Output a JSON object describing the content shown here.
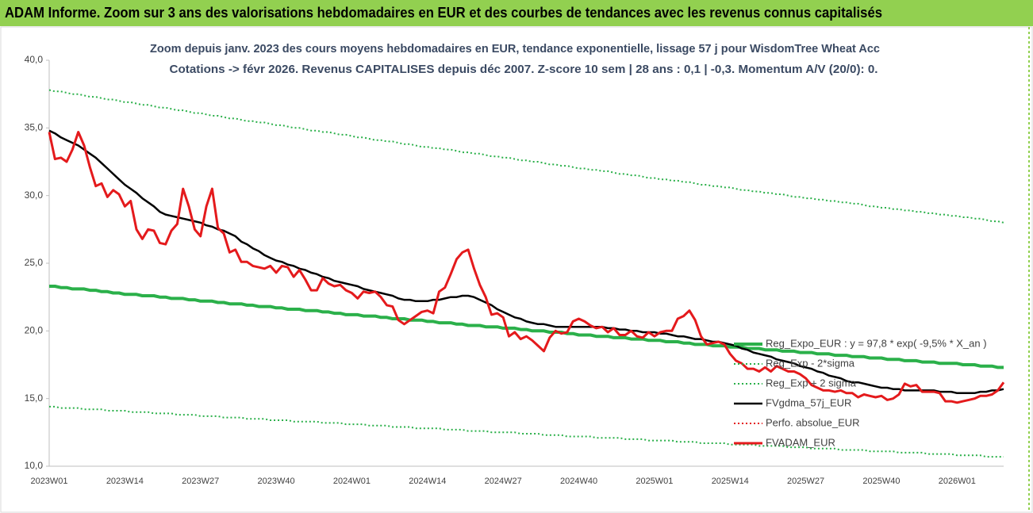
{
  "header": {
    "title": "ADAM Informe. Zoom sur 3 ans des valorisations hebdomadaires en EUR et des courbes de tendances avec les revenus connus capitalisés"
  },
  "chart_data": {
    "type": "line",
    "title": "Zoom depuis janv. 2023 des cours moyens hebdomadaires en EUR, tendance exponentielle, lissage 57 j pour WisdomTree Wheat Acc",
    "subtitle": "Cotations -> févr 2026. Revenus CAPITALISES depuis déc 2007. Z-score 10 sem | 28 ans : 0,1 | -0,3. Momentum A/V (20/0): 0.",
    "categories": [
      "2023W01",
      null,
      null,
      null,
      null,
      null,
      null,
      null,
      null,
      null,
      null,
      null,
      null,
      "2023W14",
      null,
      null,
      null,
      null,
      null,
      null,
      null,
      null,
      null,
      null,
      null,
      null,
      "2023W27",
      null,
      null,
      null,
      null,
      null,
      null,
      null,
      null,
      null,
      null,
      null,
      null,
      "2023W40",
      null,
      null,
      null,
      null,
      null,
      null,
      null,
      null,
      null,
      null,
      null,
      null,
      "2024W01",
      null,
      null,
      null,
      null,
      null,
      null,
      null,
      null,
      null,
      null,
      null,
      null,
      "2024W14",
      null,
      null,
      null,
      null,
      null,
      null,
      null,
      null,
      null,
      null,
      null,
      null,
      "2024W27",
      null,
      null,
      null,
      null,
      null,
      null,
      null,
      null,
      null,
      null,
      null,
      null,
      "2024W40",
      null,
      null,
      null,
      null,
      null,
      null,
      null,
      null,
      null,
      null,
      null,
      null,
      "2025W01",
      null,
      null,
      null,
      null,
      null,
      null,
      null,
      null,
      null,
      null,
      null,
      null,
      "2025W14",
      null,
      null,
      null,
      null,
      null,
      null,
      null,
      null,
      null,
      null,
      null,
      null,
      "2025W27",
      null,
      null,
      null,
      null,
      null,
      null,
      null,
      null,
      null,
      null,
      null,
      null,
      "2025W40",
      null,
      null,
      null,
      null,
      null,
      null,
      null,
      null,
      null,
      null,
      null,
      null,
      "2026W01",
      null,
      null,
      null,
      null,
      null,
      null,
      null,
      null
    ],
    "ylim": [
      10,
      40
    ],
    "yticks": [
      {
        "value": 10,
        "label": "10,0"
      },
      {
        "value": 15,
        "label": "15,0"
      },
      {
        "value": 20,
        "label": "20,0"
      },
      {
        "value": 25,
        "label": "25,0"
      },
      {
        "value": 30,
        "label": "30,0"
      },
      {
        "value": 35,
        "label": "35,0"
      },
      {
        "value": 40,
        "label": "40,0"
      }
    ],
    "grid": false,
    "legend": "right",
    "series": [
      {
        "name": "Reg_Expo_EUR : y = 97,8 * exp( -9,5% * X_an )",
        "color": "#2bb04a",
        "style": "solid",
        "width": 4,
        "values": [
          23.3,
          23.3,
          23.2,
          23.2,
          23.1,
          23.1,
          23.1,
          23.0,
          23.0,
          22.9,
          22.9,
          22.8,
          22.8,
          22.7,
          22.7,
          22.7,
          22.6,
          22.6,
          22.6,
          22.5,
          22.5,
          22.4,
          22.4,
          22.4,
          22.3,
          22.3,
          22.2,
          22.2,
          22.2,
          22.1,
          22.1,
          22.0,
          22.0,
          22.0,
          21.9,
          21.9,
          21.8,
          21.8,
          21.8,
          21.7,
          21.7,
          21.6,
          21.6,
          21.6,
          21.5,
          21.5,
          21.5,
          21.4,
          21.4,
          21.3,
          21.3,
          21.2,
          21.2,
          21.2,
          21.1,
          21.1,
          21.1,
          21.0,
          21.0,
          20.9,
          20.9,
          20.9,
          20.8,
          20.8,
          20.8,
          20.7,
          20.7,
          20.6,
          20.6,
          20.6,
          20.5,
          20.5,
          20.4,
          20.4,
          20.4,
          20.3,
          20.3,
          20.3,
          20.2,
          20.2,
          20.2,
          20.1,
          20.1,
          20.0,
          20.0,
          20.0,
          19.9,
          19.9,
          19.9,
          19.8,
          19.8,
          19.7,
          19.7,
          19.7,
          19.6,
          19.6,
          19.6,
          19.5,
          19.5,
          19.5,
          19.4,
          19.4,
          19.4,
          19.3,
          19.3,
          19.3,
          19.2,
          19.2,
          19.2,
          19.1,
          19.1,
          19.0,
          19.0,
          19.0,
          18.9,
          18.9,
          18.9,
          18.8,
          18.8,
          18.8,
          18.7,
          18.7,
          18.7,
          18.6,
          18.6,
          18.6,
          18.5,
          18.5,
          18.5,
          18.4,
          18.4,
          18.4,
          18.3,
          18.3,
          18.3,
          18.2,
          18.2,
          18.2,
          18.1,
          18.1,
          18.1,
          18.0,
          18.0,
          18.0,
          17.9,
          17.9,
          17.9,
          17.8,
          17.8,
          17.8,
          17.7,
          17.7,
          17.7,
          17.6,
          17.6,
          17.6,
          17.6,
          17.5,
          17.5,
          17.5,
          17.4,
          17.4,
          17.4,
          17.3,
          17.3
        ]
      },
      {
        "name": "Reg_Exp - 2*sigma",
        "color": "#2bb04a",
        "style": "dotted",
        "width": 2,
        "values": [
          14.4,
          14.4,
          14.3,
          14.3,
          14.3,
          14.3,
          14.2,
          14.2,
          14.2,
          14.2,
          14.1,
          14.1,
          14.1,
          14.1,
          14.0,
          14.0,
          14.0,
          14.0,
          13.9,
          13.9,
          13.9,
          13.9,
          13.8,
          13.8,
          13.8,
          13.8,
          13.7,
          13.7,
          13.7,
          13.7,
          13.6,
          13.6,
          13.6,
          13.6,
          13.5,
          13.5,
          13.5,
          13.5,
          13.4,
          13.4,
          13.4,
          13.4,
          13.3,
          13.3,
          13.3,
          13.3,
          13.3,
          13.2,
          13.2,
          13.2,
          13.2,
          13.1,
          13.1,
          13.1,
          13.1,
          13.0,
          13.0,
          13.0,
          13.0,
          12.9,
          12.9,
          12.9,
          12.9,
          12.8,
          12.8,
          12.8,
          12.8,
          12.8,
          12.7,
          12.7,
          12.7,
          12.7,
          12.6,
          12.6,
          12.6,
          12.6,
          12.5,
          12.5,
          12.5,
          12.5,
          12.5,
          12.4,
          12.4,
          12.4,
          12.4,
          12.3,
          12.3,
          12.3,
          12.3,
          12.2,
          12.2,
          12.2,
          12.2,
          12.2,
          12.1,
          12.1,
          12.1,
          12.1,
          12.1,
          12.0,
          12.0,
          12.0,
          12.0,
          11.9,
          11.9,
          11.9,
          11.9,
          11.9,
          11.8,
          11.8,
          11.8,
          11.8,
          11.7,
          11.7,
          11.7,
          11.7,
          11.7,
          11.6,
          11.6,
          11.6,
          11.6,
          11.6,
          11.5,
          11.5,
          11.5,
          11.5,
          11.5,
          11.4,
          11.4,
          11.4,
          11.4,
          11.3,
          11.3,
          11.3,
          11.3,
          11.3,
          11.2,
          11.2,
          11.2,
          11.2,
          11.2,
          11.1,
          11.1,
          11.1,
          11.1,
          11.1,
          11.0,
          11.0,
          11.0,
          11.0,
          11.0,
          10.9,
          10.9,
          10.9,
          10.9,
          10.9,
          10.8,
          10.8,
          10.8,
          10.8,
          10.8,
          10.7,
          10.7,
          10.7,
          10.7
        ]
      },
      {
        "name": "Reg_Exp + 2 sigma",
        "color": "#2bb04a",
        "style": "dotted",
        "width": 2,
        "values": [
          37.8,
          37.7,
          37.7,
          37.6,
          37.5,
          37.5,
          37.4,
          37.3,
          37.3,
          37.2,
          37.1,
          37.1,
          37.0,
          36.9,
          36.9,
          36.8,
          36.7,
          36.7,
          36.6,
          36.5,
          36.5,
          36.4,
          36.3,
          36.3,
          36.2,
          36.1,
          36.1,
          36.0,
          35.9,
          35.9,
          35.8,
          35.7,
          35.7,
          35.6,
          35.5,
          35.5,
          35.4,
          35.4,
          35.3,
          35.2,
          35.2,
          35.1,
          35.0,
          35.0,
          34.9,
          34.8,
          34.8,
          34.7,
          34.7,
          34.6,
          34.5,
          34.5,
          34.4,
          34.3,
          34.3,
          34.2,
          34.1,
          34.1,
          34.0,
          34.0,
          33.9,
          33.8,
          33.8,
          33.7,
          33.6,
          33.6,
          33.5,
          33.5,
          33.4,
          33.4,
          33.3,
          33.2,
          33.2,
          33.1,
          33.1,
          33.0,
          32.9,
          32.9,
          32.8,
          32.8,
          32.7,
          32.6,
          32.6,
          32.5,
          32.5,
          32.4,
          32.3,
          32.3,
          32.2,
          32.2,
          32.1,
          32.0,
          32.0,
          31.9,
          31.9,
          31.8,
          31.8,
          31.7,
          31.6,
          31.6,
          31.5,
          31.5,
          31.4,
          31.3,
          31.3,
          31.2,
          31.2,
          31.1,
          31.1,
          31.0,
          31.0,
          30.9,
          30.8,
          30.8,
          30.7,
          30.7,
          30.6,
          30.6,
          30.5,
          30.4,
          30.4,
          30.3,
          30.3,
          30.2,
          30.2,
          30.1,
          30.1,
          30.0,
          29.9,
          29.9,
          29.8,
          29.8,
          29.7,
          29.7,
          29.6,
          29.6,
          29.5,
          29.5,
          29.4,
          29.4,
          29.3,
          29.2,
          29.2,
          29.1,
          29.1,
          29.0,
          29.0,
          28.9,
          28.9,
          28.8,
          28.8,
          28.7,
          28.7,
          28.6,
          28.6,
          28.5,
          28.5,
          28.4,
          28.4,
          28.3,
          28.3,
          28.2,
          28.1,
          28.1,
          28.0
        ]
      },
      {
        "name": "FVgdma_57j_EUR",
        "color": "#000000",
        "style": "solid",
        "width": 2.5,
        "values": [
          34.8,
          34.6,
          34.3,
          34.1,
          33.9,
          33.7,
          33.4,
          33.1,
          32.8,
          32.4,
          32.0,
          31.6,
          31.2,
          30.8,
          30.5,
          30.2,
          29.8,
          29.5,
          29.2,
          28.8,
          28.6,
          28.5,
          28.4,
          28.3,
          28.2,
          28.1,
          28.0,
          27.8,
          27.7,
          27.5,
          27.4,
          27.2,
          27.0,
          26.6,
          26.4,
          26.1,
          25.9,
          25.6,
          25.4,
          25.2,
          25.1,
          24.9,
          24.8,
          24.6,
          24.5,
          24.3,
          24.2,
          24.0,
          23.9,
          23.7,
          23.6,
          23.5,
          23.4,
          23.3,
          23.1,
          23.0,
          22.9,
          22.8,
          22.7,
          22.6,
          22.4,
          22.3,
          22.3,
          22.2,
          22.2,
          22.2,
          22.3,
          22.3,
          22.4,
          22.5,
          22.5,
          22.6,
          22.6,
          22.5,
          22.3,
          22.1,
          21.9,
          21.6,
          21.4,
          21.2,
          21.0,
          20.9,
          20.7,
          20.6,
          20.5,
          20.5,
          20.4,
          20.3,
          20.3,
          20.3,
          20.3,
          20.3,
          20.3,
          20.3,
          20.3,
          20.3,
          20.2,
          20.2,
          20.1,
          20.1,
          20.0,
          20.0,
          19.9,
          19.9,
          19.9,
          19.8,
          19.8,
          19.7,
          19.6,
          19.6,
          19.5,
          19.4,
          19.4,
          19.3,
          19.2,
          19.2,
          19.1,
          19.0,
          18.9,
          18.7,
          18.6,
          18.4,
          18.3,
          18.2,
          18.1,
          17.9,
          17.8,
          17.7,
          17.6,
          17.4,
          17.3,
          17.2,
          17.0,
          16.9,
          16.7,
          16.6,
          16.5,
          16.3,
          16.2,
          16.2,
          16.1,
          16.0,
          15.9,
          15.8,
          15.8,
          15.7,
          15.7,
          15.6,
          15.6,
          15.6,
          15.6,
          15.6,
          15.6,
          15.5,
          15.5,
          15.5,
          15.4,
          15.4,
          15.4,
          15.4,
          15.5,
          15.5,
          15.6,
          15.6,
          15.7
        ]
      },
      {
        "name": "Perfo. absolue_EUR",
        "color": "#e41a1c",
        "style": "dotted",
        "width": 2
      },
      {
        "name": "FVADAM_EUR",
        "color": "#e41a1c",
        "style": "solid",
        "width": 3,
        "values": [
          34.7,
          32.7,
          32.8,
          32.5,
          33.4,
          34.7,
          33.7,
          32.1,
          30.7,
          30.9,
          29.9,
          30.4,
          30.1,
          29.2,
          29.6,
          27.5,
          26.8,
          27.5,
          27.4,
          26.5,
          26.4,
          27.4,
          27.9,
          30.5,
          29.2,
          27.5,
          27.0,
          29.2,
          30.5,
          27.6,
          27.2,
          25.8,
          26.0,
          25.1,
          25.1,
          24.8,
          24.7,
          24.6,
          24.8,
          24.3,
          24.8,
          24.7,
          24.0,
          24.5,
          23.8,
          23.0,
          23.0,
          23.9,
          23.5,
          23.3,
          23.4,
          23.0,
          22.8,
          22.4,
          22.9,
          22.8,
          22.9,
          22.5,
          21.9,
          21.8,
          20.8,
          20.5,
          20.8,
          21.1,
          21.4,
          21.5,
          21.3,
          22.9,
          23.2,
          24.2,
          25.3,
          25.8,
          26.0,
          24.6,
          23.4,
          22.5,
          21.2,
          21.3,
          21.0,
          19.6,
          19.9,
          19.4,
          19.6,
          19.3,
          18.9,
          18.5,
          19.5,
          20.0,
          19.8,
          19.9,
          20.7,
          20.9,
          20.7,
          20.4,
          20.2,
          20.3,
          19.9,
          20.2,
          19.7,
          19.7,
          20.0,
          19.6,
          19.5,
          19.9,
          19.6,
          19.9,
          20.0,
          20.0,
          20.9,
          21.1,
          21.5,
          20.8,
          19.6,
          19.0,
          19.1,
          19.2,
          19.0,
          18.3,
          17.8,
          17.6,
          17.2,
          17.2,
          17.0,
          17.3,
          17.0,
          17.4,
          17.2,
          17.0,
          17.0,
          16.8,
          16.5,
          16.0,
          15.8,
          15.6,
          15.6,
          15.5,
          15.6,
          15.4,
          15.4,
          15.1,
          15.3,
          15.2,
          15.1,
          15.2,
          14.9,
          15.0,
          15.3,
          16.1,
          15.9,
          16.0,
          15.5,
          15.5,
          15.5,
          15.4,
          14.8,
          14.8,
          14.7,
          14.8,
          14.9,
          15.0,
          15.2,
          15.2,
          15.3,
          15.6,
          16.2
        ]
      }
    ]
  }
}
